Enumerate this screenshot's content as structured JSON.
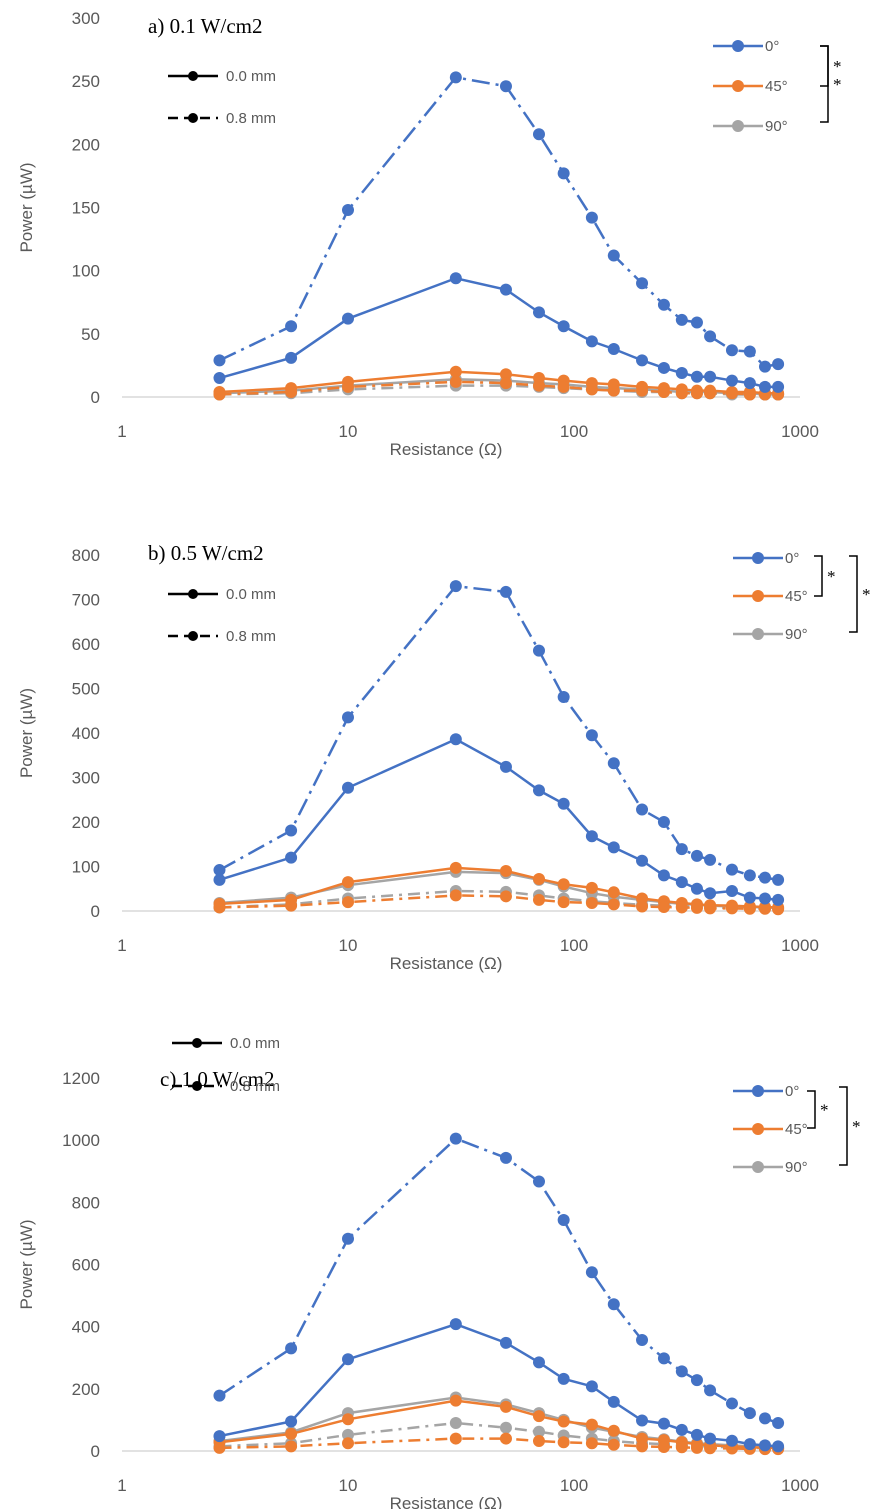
{
  "colors": {
    "0deg": "#4472C4",
    "45deg": "#ED7D31",
    "90deg": "#A5A5A5",
    "axis": "#D9D9D9",
    "text": "#595959"
  },
  "chart_data": [
    {
      "type": "line",
      "title": "a) 0.1 W/cm2",
      "xlabel": "Resistance (Ω)",
      "ylabel": "Power (µW)",
      "x_scale": "log",
      "xlim": [
        1,
        1000
      ],
      "ylim": [
        0,
        300
      ],
      "yticks": [
        0,
        50,
        100,
        150,
        200,
        250,
        300
      ],
      "xticks": [
        1,
        10,
        100,
        1000
      ],
      "xtick_labels": [
        "1",
        "10",
        "100",
        "1000"
      ],
      "legend_angles": [
        "0°",
        "45°",
        "90°"
      ],
      "legend_styles": [
        "0.0 mm",
        "0.8 mm"
      ],
      "significance": [
        "*",
        "*"
      ],
      "x": [
        2.7,
        5.6,
        10,
        30,
        50,
        70,
        90,
        120,
        150,
        200,
        250,
        300,
        350,
        400,
        500,
        600,
        700,
        800
      ],
      "series": [
        {
          "name": "0°",
          "style": "0.0 mm",
          "color": "0deg",
          "values": [
            15,
            31,
            62,
            94,
            85,
            67,
            56,
            44,
            38,
            29,
            23,
            19,
            16,
            16,
            13,
            11,
            8,
            8
          ]
        },
        {
          "name": "0°",
          "style": "0.8 mm",
          "color": "0deg",
          "values": [
            29,
            56,
            148,
            253,
            246,
            208,
            177,
            142,
            112,
            90,
            73,
            61,
            59,
            48,
            37,
            36,
            24,
            26
          ]
        },
        {
          "name": "45°",
          "style": "0.0 mm",
          "color": "45deg",
          "values": [
            4,
            7,
            12,
            20,
            18,
            15,
            13,
            11,
            10,
            8,
            7,
            6,
            5,
            5,
            4,
            4,
            3,
            3
          ]
        },
        {
          "name": "45°",
          "style": "0.8 mm",
          "color": "45deg",
          "values": [
            2,
            4,
            8,
            12,
            11,
            9,
            8,
            6,
            5,
            5,
            4,
            3,
            3,
            3,
            3,
            2,
            2,
            2
          ]
        },
        {
          "name": "90°",
          "style": "0.0 mm",
          "color": "90deg",
          "values": [
            3,
            5,
            9,
            14,
            13,
            11,
            10,
            8,
            7,
            6,
            5,
            4,
            4,
            4,
            3,
            3,
            2,
            2
          ]
        },
        {
          "name": "90°",
          "style": "0.8 mm",
          "color": "90deg",
          "values": [
            2,
            3,
            6,
            9,
            9,
            8,
            7,
            6,
            5,
            4,
            4,
            3,
            3,
            3,
            2,
            2,
            2,
            2
          ]
        }
      ]
    },
    {
      "type": "line",
      "title": "b) 0.5 W/cm2",
      "xlabel": "Resistance (Ω)",
      "ylabel": "Power (µW)",
      "x_scale": "log",
      "xlim": [
        1,
        1000
      ],
      "ylim": [
        0,
        800
      ],
      "yticks": [
        0,
        100,
        200,
        300,
        400,
        500,
        600,
        700,
        800
      ],
      "xticks": [
        1,
        10,
        100,
        1000
      ],
      "xtick_labels": [
        "1",
        "10",
        "100",
        "1000"
      ],
      "legend_angles": [
        "0°",
        "45°",
        "90°"
      ],
      "legend_styles": [
        "0.0 mm",
        "0.8 mm"
      ],
      "significance": [
        "*",
        "*"
      ],
      "x": [
        2.7,
        5.6,
        10,
        30,
        50,
        70,
        90,
        120,
        150,
        200,
        250,
        300,
        350,
        400,
        500,
        600,
        700,
        800
      ],
      "series": [
        {
          "name": "0°",
          "style": "0.0 mm",
          "color": "0deg",
          "values": [
            70,
            120,
            277,
            386,
            324,
            271,
            241,
            168,
            143,
            113,
            80,
            65,
            50,
            40,
            45,
            30,
            28,
            25
          ]
        },
        {
          "name": "0°",
          "style": "0.8 mm",
          "color": "0deg",
          "values": [
            92,
            181,
            435,
            730,
            717,
            585,
            481,
            395,
            332,
            228,
            200,
            139,
            124,
            115,
            93,
            80,
            75,
            70
          ]
        },
        {
          "name": "45°",
          "style": "0.0 mm",
          "color": "45deg",
          "values": [
            16,
            25,
            65,
            97,
            90,
            72,
            60,
            52,
            42,
            28,
            22,
            18,
            15,
            13,
            12,
            10,
            9,
            8
          ]
        },
        {
          "name": "45°",
          "style": "0.8 mm",
          "color": "45deg",
          "values": [
            8,
            12,
            20,
            35,
            33,
            25,
            20,
            18,
            15,
            10,
            9,
            8,
            7,
            6,
            6,
            5,
            5,
            4
          ]
        },
        {
          "name": "90°",
          "style": "0.0 mm",
          "color": "90deg",
          "values": [
            18,
            30,
            58,
            88,
            85,
            70,
            55,
            40,
            32,
            25,
            20,
            16,
            14,
            12,
            10,
            9,
            8,
            7
          ]
        },
        {
          "name": "90°",
          "style": "0.8 mm",
          "color": "90deg",
          "values": [
            8,
            15,
            28,
            45,
            43,
            35,
            28,
            22,
            18,
            14,
            12,
            10,
            9,
            8,
            7,
            6,
            6,
            5
          ]
        }
      ]
    },
    {
      "type": "line",
      "title": "c) 1.0 W/cm2",
      "xlabel": "Resistance (Ω)",
      "ylabel": "Power (µW)",
      "x_scale": "log",
      "xlim": [
        1,
        1000
      ],
      "ylim": [
        0,
        1200
      ],
      "yticks": [
        0,
        200,
        400,
        600,
        800,
        1000,
        1200
      ],
      "xticks": [
        1,
        10,
        100,
        1000
      ],
      "xtick_labels": [
        "1",
        "10",
        "100",
        "1000"
      ],
      "legend_angles": [
        "0°",
        "45°",
        "90°"
      ],
      "legend_styles": [
        "0.0 mm",
        "0.8 mm"
      ],
      "significance": [
        "*",
        "*"
      ],
      "x": [
        2.7,
        5.6,
        10,
        30,
        50,
        70,
        90,
        120,
        150,
        200,
        250,
        300,
        350,
        400,
        500,
        600,
        700,
        800
      ],
      "series": [
        {
          "name": "0°",
          "style": "0.0 mm",
          "color": "0deg",
          "values": [
            48,
            95,
            295,
            408,
            348,
            285,
            232,
            208,
            158,
            98,
            88,
            68,
            52,
            40,
            33,
            22,
            18,
            15
          ]
        },
        {
          "name": "0°",
          "style": "0.8 mm",
          "color": "0deg",
          "values": [
            178,
            330,
            683,
            1005,
            943,
            867,
            743,
            575,
            472,
            357,
            298,
            256,
            228,
            195,
            153,
            122,
            105,
            90
          ]
        },
        {
          "name": "45°",
          "style": "0.0 mm",
          "color": "45deg",
          "values": [
            28,
            55,
            102,
            162,
            142,
            112,
            95,
            85,
            65,
            40,
            35,
            28,
            22,
            18,
            15,
            12,
            10,
            10
          ]
        },
        {
          "name": "45°",
          "style": "0.8 mm",
          "color": "45deg",
          "values": [
            10,
            15,
            25,
            40,
            40,
            32,
            28,
            25,
            20,
            15,
            13,
            12,
            10,
            9,
            8,
            7,
            6,
            6
          ]
        },
        {
          "name": "90°",
          "style": "0.0 mm",
          "color": "90deg",
          "values": [
            32,
            60,
            122,
            172,
            150,
            122,
            100,
            75,
            62,
            45,
            38,
            30,
            25,
            22,
            18,
            15,
            12,
            10
          ]
        },
        {
          "name": "90°",
          "style": "0.8 mm",
          "color": "90deg",
          "values": [
            15,
            25,
            52,
            90,
            75,
            62,
            50,
            40,
            32,
            25,
            22,
            18,
            16,
            14,
            12,
            10,
            9,
            8
          ]
        }
      ]
    }
  ]
}
